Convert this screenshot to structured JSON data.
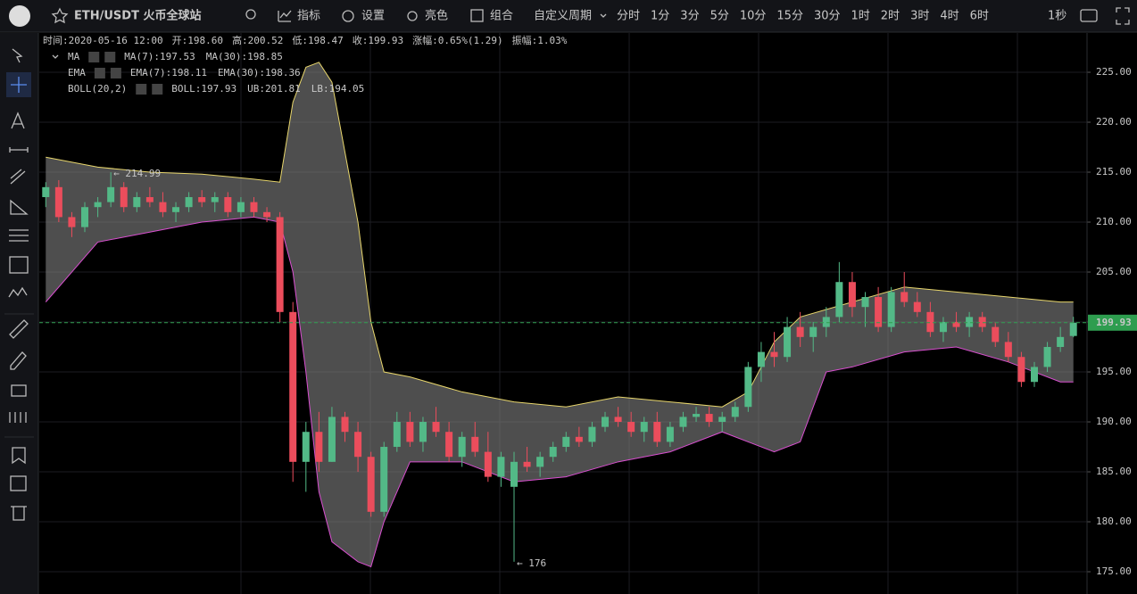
{
  "toolbar": {
    "symbol": "ETH/USDT 火币全球站",
    "buttons": [
      "指标",
      "设置",
      "亮色",
      "组合"
    ],
    "custom_period": "自定义周期",
    "periods": [
      "分时",
      "1分",
      "3分",
      "5分",
      "10分",
      "15分",
      "30分",
      "1时",
      "2时",
      "3时",
      "4时",
      "6时"
    ],
    "active_period": 7,
    "clock": "1秒"
  },
  "chart_data": {
    "type": "candlestick",
    "info": [
      {
        "label": "时间:",
        "value": "2020-05-16 12:00"
      },
      {
        "label": "开:",
        "value": "198.60"
      },
      {
        "label": "高:",
        "value": "200.52"
      },
      {
        "label": "低:",
        "value": "198.47"
      },
      {
        "label": "收:",
        "value": "199.93"
      },
      {
        "label": "涨幅:",
        "value": "0.65%(1.29)"
      },
      {
        "label": "振幅:",
        "value": "1.03%"
      }
    ],
    "indicators": [
      {
        "name": "MA",
        "items": [
          {
            "text": "MA(7):197.53",
            "color": "#e6e6e6"
          },
          {
            "text": "MA(30):198.85",
            "color": "#e8d66c"
          }
        ]
      },
      {
        "name": "EMA",
        "items": [
          {
            "text": "EMA(7):198.11",
            "color": "#e6e6e6"
          },
          {
            "text": "EMA(30):198.36",
            "color": "#e8d66c"
          }
        ]
      },
      {
        "name": "BOLL(20,2)",
        "items": [
          {
            "text": "BOLL:197.93",
            "color": "#e6e6e6"
          },
          {
            "text": "UB:201.81",
            "color": "#e8d66c"
          },
          {
            "text": "LB:194.05",
            "color": "#d94fd0"
          }
        ]
      }
    ],
    "up_color": "#53b987",
    "down_color": "#eb4d5c",
    "open": [
      212.5,
      213.5,
      210.5,
      209.5,
      211.5,
      212,
      213.5,
      211.5,
      212.5,
      212,
      211,
      211.5,
      212.5,
      212,
      212.5,
      211,
      212,
      211,
      210.5,
      201,
      186,
      189,
      186,
      190.5,
      189,
      186.5,
      181,
      187.5,
      190,
      188,
      190,
      189,
      186.5,
      188.5,
      187,
      184.5,
      183.5,
      186,
      185.5,
      186.5,
      187.5,
      188.5,
      188,
      189.5,
      190.5,
      190,
      189,
      190,
      188,
      189.5,
      190.5,
      190.8,
      190,
      190.5,
      191.5,
      195.5,
      197,
      196.5,
      199.5,
      198.5,
      199.5,
      200.5,
      204,
      201.5,
      202.5,
      199.5,
      203,
      202,
      201,
      199,
      200,
      199.5,
      200.5,
      199.5,
      198,
      196.5,
      194,
      195.5,
      197.5,
      198.6
    ],
    "high": [
      214,
      214.2,
      211,
      212,
      212.5,
      214.99,
      214,
      213,
      213.5,
      213,
      212,
      213,
      213.2,
      213,
      213,
      212.5,
      212.5,
      211.5,
      211,
      202,
      190,
      191,
      191.5,
      191,
      190,
      187,
      188,
      191,
      191,
      190.5,
      191.5,
      190,
      189,
      190,
      189,
      187,
      187,
      187.5,
      187,
      188,
      189,
      189.5,
      190,
      191,
      191.5,
      191,
      190.5,
      191,
      190,
      191,
      191.5,
      191.5,
      191,
      192,
      196,
      198,
      199,
      200.5,
      201,
      200,
      201.5,
      206,
      205,
      203,
      203.5,
      203.5,
      205,
      203,
      202,
      200.5,
      201,
      201,
      201,
      200,
      199,
      197,
      196,
      198,
      199.5,
      200.52
    ],
    "low": [
      211.5,
      210,
      208.5,
      209,
      210.5,
      211.5,
      211,
      211,
      211.5,
      210.5,
      210,
      211,
      211.5,
      211,
      210.5,
      210.5,
      210.5,
      210,
      200,
      184,
      183,
      185,
      186,
      188,
      185,
      180.5,
      180.5,
      187,
      187.5,
      187,
      188.5,
      186,
      185.5,
      186.5,
      184,
      183.5,
      176,
      185,
      184.5,
      186,
      187,
      187.5,
      187.5,
      189,
      189.5,
      188.5,
      188,
      187.5,
      187.5,
      189,
      190,
      189.5,
      189,
      190,
      191,
      194,
      195.5,
      196,
      197.5,
      197,
      198.5,
      200,
      200.5,
      199.5,
      199,
      199,
      201.5,
      200.5,
      198.5,
      198,
      199,
      198.5,
      199,
      197.5,
      196,
      193.5,
      193.5,
      195,
      197,
      198.47
    ],
    "close": [
      213.5,
      210.5,
      209.5,
      211.5,
      212,
      213.5,
      211.5,
      212.5,
      212,
      211,
      211.5,
      212.5,
      212,
      212.5,
      211,
      212,
      211,
      210.5,
      201,
      186,
      189,
      186,
      190.5,
      189,
      186.5,
      181,
      187.5,
      190,
      188,
      190,
      189,
      186.5,
      188.5,
      187,
      184.5,
      186.5,
      186,
      185.5,
      186.5,
      187.5,
      188.5,
      188,
      189.5,
      190.5,
      190,
      189,
      190,
      188,
      189.5,
      190.5,
      190.8,
      190,
      190.5,
      191.5,
      195.5,
      197,
      196.5,
      199.5,
      198.5,
      199.5,
      200.5,
      204,
      201.5,
      202.5,
      199.5,
      203,
      202,
      201,
      199,
      200,
      199.5,
      200.5,
      199.5,
      198,
      196.5,
      194,
      195.5,
      197.5,
      198.5,
      199.93
    ],
    "boll_upper": {
      "color": "#e8d66c",
      "x": [
        0,
        4,
        8,
        12,
        16,
        18,
        19,
        20,
        21,
        22,
        24,
        25,
        26,
        28,
        32,
        36,
        40,
        44,
        48,
        52,
        54,
        56,
        58,
        62,
        66,
        70,
        74,
        78,
        79
      ],
      "values": [
        216.5,
        215.5,
        215,
        214.8,
        214.3,
        214,
        222,
        225.5,
        226,
        224,
        210,
        200,
        195,
        194.5,
        193,
        192,
        191.5,
        192.5,
        192,
        191.5,
        193,
        198,
        200.5,
        202,
        203.5,
        203,
        202.5,
        202,
        202
      ]
    },
    "boll_lower": {
      "color": "#d94fd0",
      "x": [
        0,
        2,
        4,
        8,
        12,
        16,
        18,
        19,
        20,
        21,
        22,
        24,
        25,
        26,
        28,
        32,
        36,
        40,
        44,
        48,
        52,
        54,
        56,
        58,
        60,
        62,
        66,
        70,
        74,
        78,
        79
      ],
      "values": [
        202,
        205,
        208,
        209,
        210,
        210.5,
        210,
        205,
        195,
        183,
        178,
        176,
        175.5,
        180,
        186,
        186,
        184,
        184.5,
        186,
        187,
        189,
        188,
        187,
        188,
        195,
        195.5,
        197,
        197.5,
        196,
        194,
        194
      ]
    },
    "max_label": {
      "label": "← 214.99",
      "value": 214.99,
      "index": 5
    },
    "min_label": {
      "label": "← 176",
      "value": 176,
      "index": 36
    },
    "last_price": {
      "label": "199.93",
      "value": 199.93,
      "color": "#2e9d4f"
    },
    "ylim": [
      172.77,
      228.93
    ],
    "yticks": [
      {
        "value": 175,
        "label": "175.00"
      },
      {
        "value": 180,
        "label": "180.00"
      },
      {
        "value": 185,
        "label": "185.00"
      },
      {
        "value": 190,
        "label": "190.00"
      },
      {
        "value": 195,
        "label": "195.00"
      },
      {
        "value": 200,
        "label": "200.00"
      },
      {
        "value": 205,
        "label": "205.00"
      },
      {
        "value": 210,
        "label": "210.00"
      },
      {
        "value": 215,
        "label": "215.00"
      },
      {
        "value": 220,
        "label": "220.00"
      },
      {
        "value": 225,
        "label": "225.00"
      }
    ],
    "grid": true
  }
}
